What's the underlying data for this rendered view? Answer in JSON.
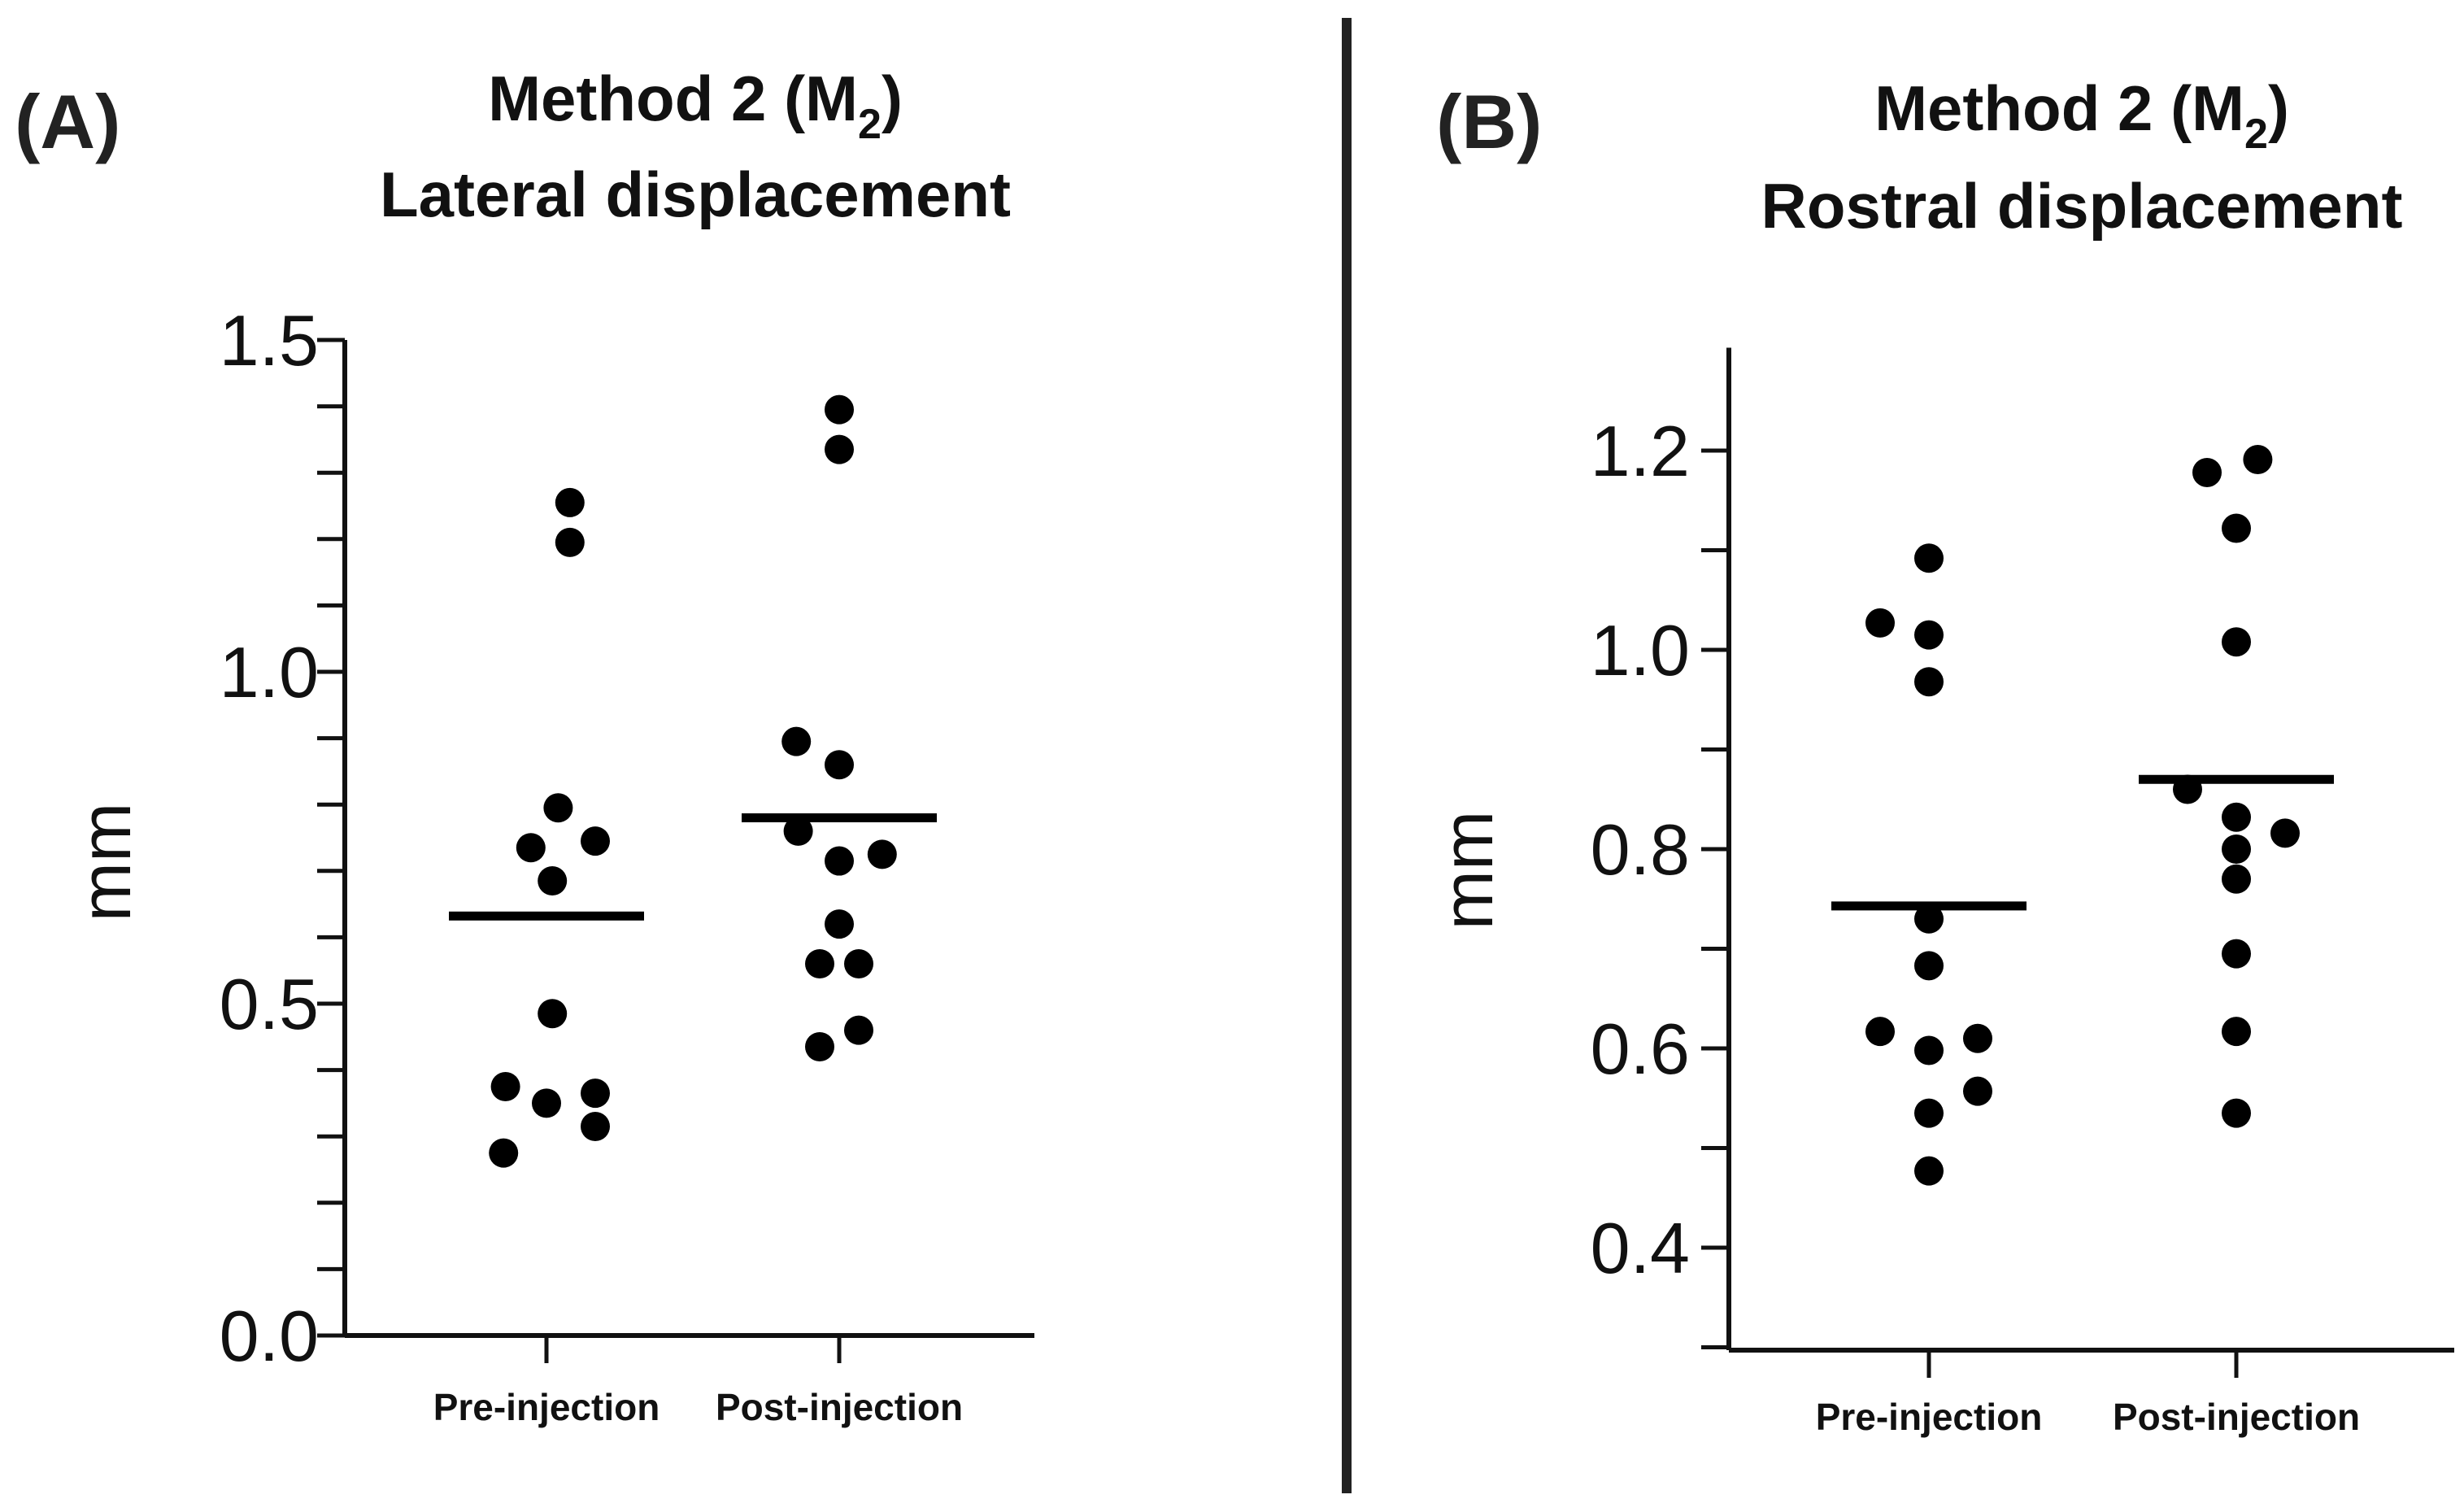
{
  "chart_data": [
    {
      "type": "scatter",
      "panel": "(A)",
      "title": "Method 2 (M",
      "title_subscript": "2",
      "title_close": ")",
      "subtitle": "Lateral displacement",
      "ylabel": "mm",
      "ylim": [
        0.0,
        1.5
      ],
      "major_ticks": [
        0.0,
        0.5,
        1.0,
        1.5
      ],
      "major_tick_labels": [
        "0.0",
        "0.5",
        "1.0",
        "1.5"
      ],
      "minor_ticks": [
        0.1,
        0.2,
        0.3,
        0.4,
        0.6,
        0.7,
        0.8,
        0.9,
        1.1,
        1.2,
        1.3,
        1.4
      ],
      "categories": [
        "Pre-injection",
        "Post-injection"
      ],
      "series": [
        {
          "name": "Pre-injection",
          "points": [
            {
              "offset": 0.12,
              "value": 1.255
            },
            {
              "offset": 0.12,
              "value": 1.195
            },
            {
              "offset": 0.06,
              "value": 0.795
            },
            {
              "offset": -0.08,
              "value": 0.735
            },
            {
              "offset": 0.25,
              "value": 0.745
            },
            {
              "offset": 0.03,
              "value": 0.685
            },
            {
              "offset": 0.03,
              "value": 0.485
            },
            {
              "offset": -0.21,
              "value": 0.375
            },
            {
              "offset": 0.0,
              "value": 0.35
            },
            {
              "offset": 0.25,
              "value": 0.365
            },
            {
              "offset": 0.25,
              "value": 0.315
            },
            {
              "offset": -0.22,
              "value": 0.275
            }
          ],
          "mean": 0.632
        },
        {
          "name": "Post-injection",
          "points": [
            {
              "offset": 0.0,
              "value": 1.395
            },
            {
              "offset": 0.0,
              "value": 1.335
            },
            {
              "offset": -0.22,
              "value": 0.895
            },
            {
              "offset": 0.0,
              "value": 0.86
            },
            {
              "offset": -0.21,
              "value": 0.76
            },
            {
              "offset": 0.0,
              "value": 0.715
            },
            {
              "offset": 0.22,
              "value": 0.725
            },
            {
              "offset": 0.0,
              "value": 0.62
            },
            {
              "offset": -0.1,
              "value": 0.56
            },
            {
              "offset": 0.1,
              "value": 0.56
            },
            {
              "offset": -0.1,
              "value": 0.435
            },
            {
              "offset": 0.1,
              "value": 0.46
            }
          ],
          "mean": 0.78
        }
      ]
    },
    {
      "type": "scatter",
      "panel": "(B)",
      "title": "Method 2 (M",
      "title_subscript": "2",
      "title_close": ")",
      "subtitle": "Rostral displacement",
      "ylabel": "mm",
      "ylim": [
        0.3,
        1.3
      ],
      "major_ticks": [
        0.4,
        0.6,
        0.8,
        1.0,
        1.2
      ],
      "major_tick_labels": [
        "0.4",
        "0.6",
        "0.8",
        "1.0",
        "1.2"
      ],
      "minor_ticks": [
        0.3,
        0.5,
        0.7,
        0.9,
        1.1
      ],
      "categories": [
        "Pre-injection",
        "Post-injection"
      ],
      "series": [
        {
          "name": "Pre-injection",
          "points": [
            {
              "offset": 0.0,
              "value": 1.092
            },
            {
              "offset": -0.25,
              "value": 1.027
            },
            {
              "offset": 0.0,
              "value": 1.015
            },
            {
              "offset": 0.0,
              "value": 0.968
            },
            {
              "offset": 0.0,
              "value": 0.73
            },
            {
              "offset": 0.0,
              "value": 0.683
            },
            {
              "offset": -0.25,
              "value": 0.617
            },
            {
              "offset": 0.0,
              "value": 0.598
            },
            {
              "offset": 0.25,
              "value": 0.61
            },
            {
              "offset": 0.25,
              "value": 0.557
            },
            {
              "offset": 0.0,
              "value": 0.535
            },
            {
              "offset": 0.0,
              "value": 0.477
            }
          ],
          "mean": 0.743
        },
        {
          "name": "Post-injection",
          "points": [
            {
              "offset": -0.15,
              "value": 1.178
            },
            {
              "offset": 0.11,
              "value": 1.191
            },
            {
              "offset": 0.0,
              "value": 1.122
            },
            {
              "offset": 0.0,
              "value": 1.008
            },
            {
              "offset": -0.25,
              "value": 0.86
            },
            {
              "offset": 0.0,
              "value": 0.832
            },
            {
              "offset": 0.25,
              "value": 0.816
            },
            {
              "offset": 0.0,
              "value": 0.8
            },
            {
              "offset": 0.0,
              "value": 0.77
            },
            {
              "offset": 0.0,
              "value": 0.695
            },
            {
              "offset": 0.0,
              "value": 0.617
            },
            {
              "offset": 0.0,
              "value": 0.535
            }
          ],
          "mean": 0.87
        }
      ]
    }
  ]
}
